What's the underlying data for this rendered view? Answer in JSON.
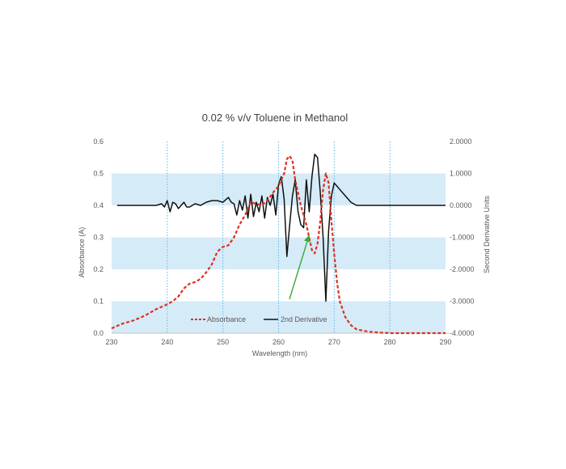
{
  "chart_data": {
    "type": "line",
    "title": "0.02 % v/v Toluene in Methanol",
    "xlabel": "Wavelength (nm)",
    "ylabel": "Absorbance (A)",
    "y2label": "Second Derivative Units",
    "xlim": [
      230,
      290
    ],
    "ylim": [
      0,
      0.6
    ],
    "y2lim": [
      -4,
      2
    ],
    "x_ticks": [
      "230",
      "240",
      "250",
      "260",
      "270",
      "280",
      "290"
    ],
    "y_ticks": [
      "0.0",
      "0.1",
      "0.2",
      "0.3",
      "0.4",
      "0.5",
      "0.6"
    ],
    "y2_ticks": [
      "-4.0000",
      "-3.0000",
      "-2.0000",
      "-1.0000",
      "0.0000",
      "1.0000",
      "2.0000"
    ],
    "bands": [
      [
        0,
        0.1
      ],
      [
        0.2,
        0.3
      ],
      [
        0.4,
        0.5
      ]
    ],
    "vertical_gridlines_x": [
      240,
      250,
      260,
      270,
      280
    ],
    "legend_position": "bottom-inside",
    "annotation": "green arrow pointing to the 2nd Derivative trough near 265 nm",
    "series": [
      {
        "name": "Absorbance",
        "axis": "left",
        "color": "#e0301e",
        "style": "dashed",
        "x": [
          230,
          232,
          234,
          236,
          238,
          240,
          241,
          242,
          243,
          244,
          245,
          246,
          247,
          248,
          249,
          250,
          251,
          252,
          253,
          254,
          255,
          256,
          257,
          258,
          259,
          260,
          261,
          261.5,
          262,
          262.5,
          263,
          264,
          265,
          266,
          266.5,
          267,
          267.5,
          268,
          268.5,
          269,
          269.5,
          270,
          270.5,
          271,
          272,
          273,
          274,
          276,
          278,
          280,
          285,
          290
        ],
        "y": [
          0.015,
          0.03,
          0.04,
          0.055,
          0.075,
          0.09,
          0.1,
          0.115,
          0.14,
          0.155,
          0.16,
          0.17,
          0.19,
          0.215,
          0.255,
          0.27,
          0.275,
          0.3,
          0.34,
          0.37,
          0.41,
          0.405,
          0.4,
          0.415,
          0.44,
          0.46,
          0.5,
          0.545,
          0.555,
          0.54,
          0.48,
          0.4,
          0.34,
          0.26,
          0.25,
          0.28,
          0.35,
          0.45,
          0.5,
          0.47,
          0.35,
          0.25,
          0.16,
          0.1,
          0.05,
          0.025,
          0.012,
          0.005,
          0.002,
          0.0,
          0.0,
          0.0
        ]
      },
      {
        "name": "2nd Derivative",
        "axis": "right",
        "color": "#111111",
        "style": "solid",
        "x": [
          231,
          238,
          239,
          239.5,
          240,
          240.5,
          241,
          241.5,
          242,
          242.5,
          243,
          243.5,
          244,
          245,
          246,
          247,
          248,
          249,
          250,
          251,
          251.5,
          252,
          252.5,
          253,
          253.5,
          254,
          254.5,
          255,
          255.5,
          256,
          256.5,
          257,
          257.5,
          258,
          258.5,
          259,
          259.5,
          260,
          260.5,
          261,
          261.5,
          262,
          262.5,
          263,
          263.5,
          264,
          264.5,
          265,
          265.5,
          266,
          266.5,
          267,
          267.5,
          268,
          268.5,
          269,
          269.5,
          270,
          270.5,
          271,
          272,
          273,
          274,
          275,
          280,
          290
        ],
        "y": [
          0.0,
          0.0,
          0.05,
          -0.05,
          0.15,
          -0.2,
          0.1,
          0.05,
          -0.1,
          0.0,
          0.1,
          -0.05,
          -0.05,
          0.05,
          0.0,
          0.1,
          0.15,
          0.15,
          0.1,
          0.25,
          0.1,
          0.05,
          -0.3,
          0.15,
          -0.15,
          0.3,
          -0.4,
          0.35,
          -0.35,
          0.1,
          -0.2,
          0.3,
          -0.4,
          0.25,
          0.0,
          0.35,
          -0.3,
          0.65,
          0.9,
          0.2,
          -1.6,
          -0.6,
          0.3,
          0.8,
          -0.2,
          -0.6,
          -0.7,
          0.8,
          -0.2,
          0.9,
          1.6,
          1.5,
          0.4,
          -1.0,
          -3.0,
          -0.8,
          0.3,
          0.7,
          0.6,
          0.5,
          0.3,
          0.1,
          0.0,
          0.0,
          0.0,
          0.0
        ]
      }
    ]
  }
}
